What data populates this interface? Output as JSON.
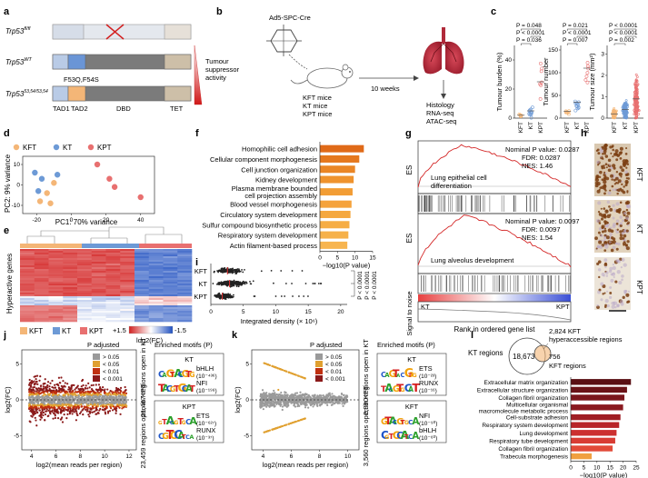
{
  "panel_letters": [
    "a",
    "b",
    "c",
    "d",
    "e",
    "f",
    "g",
    "h",
    "i",
    "j",
    "k",
    "l"
  ],
  "colors": {
    "kft": "#f4b677",
    "kt": "#6d9ad6",
    "kpt": "#e87070",
    "hyper": "#b01010",
    "orange": "#f5a33c",
    "darkred": "#8b1a1a"
  },
  "a": {
    "alleles": [
      "Trp53fl/fl",
      "Trp53WT",
      "Trp53S3,54/S3,54"
    ],
    "allele_base": [
      "Trp53",
      "Trp53",
      "Trp53"
    ],
    "allele_sup": [
      "fl/fl",
      "WT",
      "53,54/53,54"
    ],
    "mutation_label": "F53Q,F54S",
    "domains": [
      "TAD1",
      "TAD2",
      "DBD",
      "TET"
    ],
    "gradient_label": [
      "Tumour",
      "suppressor",
      "activity"
    ]
  },
  "b": {
    "virus": "Ad5-SPC-Cre",
    "mice": [
      "KFT mice",
      "KT mice",
      "KPT mice"
    ],
    "time": "10 weeks",
    "readouts": [
      "Histology",
      "RNA-seq",
      "ATAC-seq"
    ]
  },
  "c": {
    "groups": [
      "KFT",
      "KT",
      "KPT"
    ],
    "plots": [
      {
        "ylabel": "Tumour burden (%)",
        "ticks": [
          0,
          20,
          40
        ],
        "pvals": [
          "P = 0.048",
          "P < 0.0001",
          "P = 0.036"
        ]
      },
      {
        "ylabel": "Tumour number",
        "ticks": [
          0,
          50,
          100,
          150
        ],
        "pvals": [
          "P = 0.021",
          "P < 0.0001",
          "P = 0.007"
        ]
      },
      {
        "ylabel": "Tumour size (mm²)",
        "ticks": [
          0,
          1,
          2,
          3
        ],
        "pvals": [
          "P < 0.0001",
          "P < 0.0001",
          "P = 0.002"
        ]
      }
    ]
  },
  "d": {
    "legend": [
      "KFT",
      "KT",
      "KPT"
    ],
    "xlabel": "PC1: 70% variance",
    "ylabel": "PC2: 9% variance",
    "xticks": [
      -20,
      0,
      20,
      40
    ],
    "yticks": [
      -10,
      0,
      10
    ],
    "points": {
      "KFT": [
        [
          -18,
          -8
        ],
        [
          -12,
          -9
        ],
        [
          -14,
          -4
        ],
        [
          -10,
          1
        ]
      ],
      "KT": [
        [
          -17,
          3
        ],
        [
          -19,
          -3
        ],
        [
          -8,
          5
        ],
        [
          -21,
          6
        ]
      ],
      "KPT": [
        [
          22,
          3
        ],
        [
          25,
          -1
        ],
        [
          40,
          -6
        ],
        [
          15,
          10
        ]
      ]
    }
  },
  "e": {
    "ylabel": "Hyperactive genes",
    "legend": [
      "KFT",
      "KT",
      "KPT"
    ],
    "scale_labels": [
      "+1.5",
      "-1.5"
    ],
    "scale_title": "log2(FC)"
  },
  "f": {
    "terms": [
      "Homophilic cell adhesion",
      "Cellular component morphogenesis",
      "Cell junction organization",
      "Kidney development",
      "Plasma membrane bounded",
      "cell projection assembly",
      "Blood vessel morphogenesis",
      "Circulatory system development",
      "Sulfur compound biosynthetic process",
      "Respiratory system development",
      "Actin filament-based process"
    ],
    "values": [
      12.5,
      11.2,
      10.0,
      9.6,
      9.3,
      9.0,
      8.7,
      8.4,
      8.1,
      7.8
    ],
    "xticks": [
      0,
      5,
      10,
      15
    ],
    "xlabel": "−log10(P value)"
  },
  "g": {
    "top": {
      "nominal": "Nominal P value: 0.0287",
      "fdr": "FDR: 0.0287",
      "nes": "NES: 1.46",
      "term": [
        "Lung epithelial cell",
        "differentiation"
      ]
    },
    "bottom": {
      "nominal": "Nominal P value: 0.0097",
      "fdr": "FDR: 0.0097",
      "nes": "NES: 1.54",
      "term": "Lung alveolus development"
    },
    "ylabel_es": "ES",
    "ylabel_sn": "Signal to noise",
    "xlabel": "Rank in ordered gene list",
    "left_label": "KT",
    "right_label": "KPT"
  },
  "h": {
    "labels": [
      "KFT",
      "KT",
      "KPT"
    ]
  },
  "i": {
    "groups": [
      "KFT",
      "KT",
      "KPT"
    ],
    "xticks": [
      0,
      5,
      10,
      15,
      20
    ],
    "xlabel": "Integrated density (× 10⁶)",
    "pvals": [
      "P < 0.0001",
      "P < 0.0001",
      "P < 0.0001"
    ]
  },
  "j": {
    "legend_title": "P adjusted",
    "legend_items": [
      "> 0.05",
      "< 0.05",
      "< 0.01",
      "< 0.001"
    ],
    "xlabel": "log2(mean reads per region)",
    "ylabel": "log2(FC)",
    "xticks": [
      4,
      6,
      8,
      10,
      12
    ],
    "yticks": [
      -5,
      0,
      5
    ],
    "open_top": "21,467 regions open in KT",
    "open_bottom": "23,459 regions open in KPT",
    "motif_title": "Enriched motifs (P)",
    "motif_groups": [
      {
        "group": "KT",
        "motifs": [
          {
            "name": "bHLH",
            "p": "(10⁻⁴³⁶)"
          },
          {
            "name": "NFI",
            "p": "(10⁻¹⁹⁸)"
          }
        ]
      },
      {
        "group": "KPT",
        "motifs": [
          {
            "name": "ETS",
            "p": "(10⁻⁶²⁷)"
          },
          {
            "name": "RUNX",
            "p": "(10⁻³⁷)"
          }
        ]
      }
    ]
  },
  "k": {
    "legend_title": "P adjusted",
    "legend_items": [
      "> 0.05",
      "< 0.05",
      "< 0.01",
      "< 0.001"
    ],
    "xlabel": "log2(mean reads per region)",
    "ylabel": "log2(FC)",
    "xticks": [
      4,
      6,
      8,
      10
    ],
    "yticks": [
      -5,
      0,
      5
    ],
    "open_top": "2,890 regions open in KT",
    "open_bottom": "3,560 regions open in KFT",
    "motif_title": "Enriched motifs (P)",
    "motif_groups": [
      {
        "group": "KT",
        "motifs": [
          {
            "name": "ETS",
            "p": "(10⁻²³)"
          },
          {
            "name": "RUNX",
            "p": "(10⁻¹⁶)"
          }
        ]
      },
      {
        "group": "KFT",
        "motifs": [
          {
            "name": "NFI",
            "p": "(10⁻⁹⁰)"
          },
          {
            "name": "bHLH",
            "p": "(10⁻⁶⁰)"
          }
        ]
      }
    ]
  },
  "l": {
    "kt_regions_label": "KT regions",
    "kt_count": "18,673",
    "overlap_count": "756",
    "kft_label": "KFT regions",
    "hyper_label": [
      "2,824 KFT",
      "hyperaccessible regions"
    ],
    "terms": [
      "Extracellular matrix organization",
      "Extracellular structure organization",
      "Collagen fibril organization",
      "Multicellular organismal",
      "macromolecule metabolic process",
      "Cell-substrate adhesion",
      "Respiratory system development",
      "Lung development",
      "Respiratory tube development",
      "Collagen fibril organization",
      "Trabecula morphogenesis"
    ],
    "values": [
      23,
      21.5,
      20.5,
      20,
      19,
      18.5,
      17.5,
      17,
      16,
      8
    ],
    "xticks": [
      0,
      5,
      10,
      15,
      20,
      25
    ],
    "xlabel": "−log10(P value)"
  }
}
